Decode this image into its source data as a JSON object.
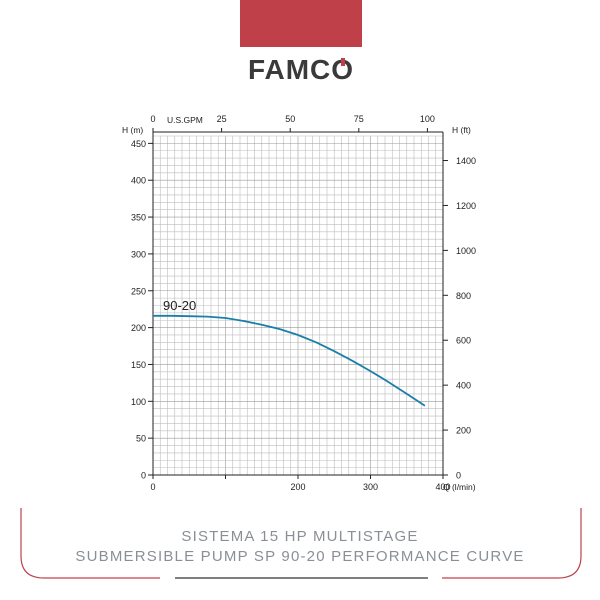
{
  "brand": {
    "name": "FAMCO",
    "band_color": "#c0404a",
    "logo_color": "#3a3a3a",
    "logo_accent": "#c0404a"
  },
  "caption": {
    "line1": "SISTEMA 15 HP MULTISTAGE",
    "line2": "SUBMERSIBLE PUMP SP 90-20 PERFORMANCE CURVE"
  },
  "chart_data": {
    "type": "line",
    "left_axis": {
      "label": "H (m)",
      "range": [
        0,
        450
      ],
      "ticks": [
        0,
        50,
        100,
        150,
        200,
        250,
        300,
        350,
        400,
        450
      ]
    },
    "right_axis": {
      "label": "H (ft)",
      "range": [
        0,
        1476
      ],
      "ticks": [
        0,
        200,
        400,
        600,
        800,
        1000,
        1200,
        1400
      ]
    },
    "bottom_axis": {
      "label": "Q (l/min)",
      "range": [
        0,
        400
      ],
      "ticks": [
        0,
        200,
        300,
        400
      ]
    },
    "top_axis": {
      "label": "U.S.GPM",
      "range": [
        0,
        105.7
      ],
      "ticks": [
        0,
        25,
        50,
        75,
        100
      ]
    },
    "grid": true,
    "series": [
      {
        "name": "90-20",
        "color": "#1a7fa8",
        "x": [
          0,
          25,
          50,
          75,
          100,
          125,
          150,
          175,
          200,
          225,
          250,
          275,
          300,
          325,
          350,
          375
        ],
        "y": [
          216,
          216,
          215.5,
          215,
          213,
          209,
          204,
          198,
          190,
          180,
          168,
          155,
          141,
          126,
          110,
          94
        ]
      }
    ]
  }
}
